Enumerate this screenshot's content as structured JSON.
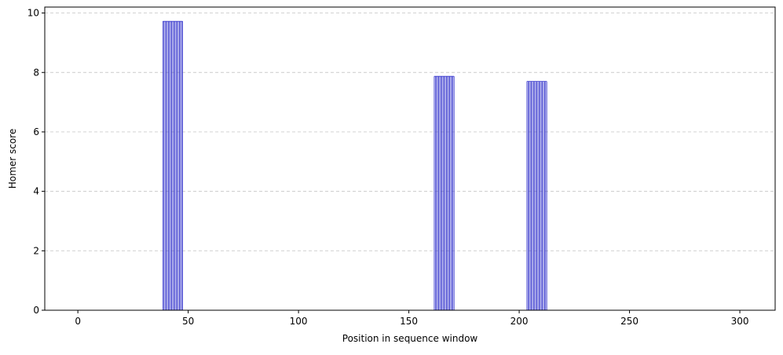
{
  "chart_data": {
    "type": "bar",
    "title": "",
    "xlabel": "Position in sequence window",
    "ylabel": "Homer score",
    "xlim": [
      -15,
      316
    ],
    "ylim": [
      0,
      10.2
    ],
    "xticks": [
      0,
      50,
      100,
      150,
      200,
      250,
      300
    ],
    "yticks": [
      0,
      2,
      4,
      6,
      8,
      10
    ],
    "grid": {
      "y": true,
      "x": false,
      "style": "dashed"
    },
    "bar_color": "#3333cc",
    "bar_groups": [
      {
        "x_start": 38.5,
        "x_end": 47.5,
        "value": 9.72
      },
      {
        "x_start": 161.5,
        "x_end": 170.5,
        "value": 7.87
      },
      {
        "x_start": 203.5,
        "x_end": 212.5,
        "value": 7.7
      }
    ]
  }
}
